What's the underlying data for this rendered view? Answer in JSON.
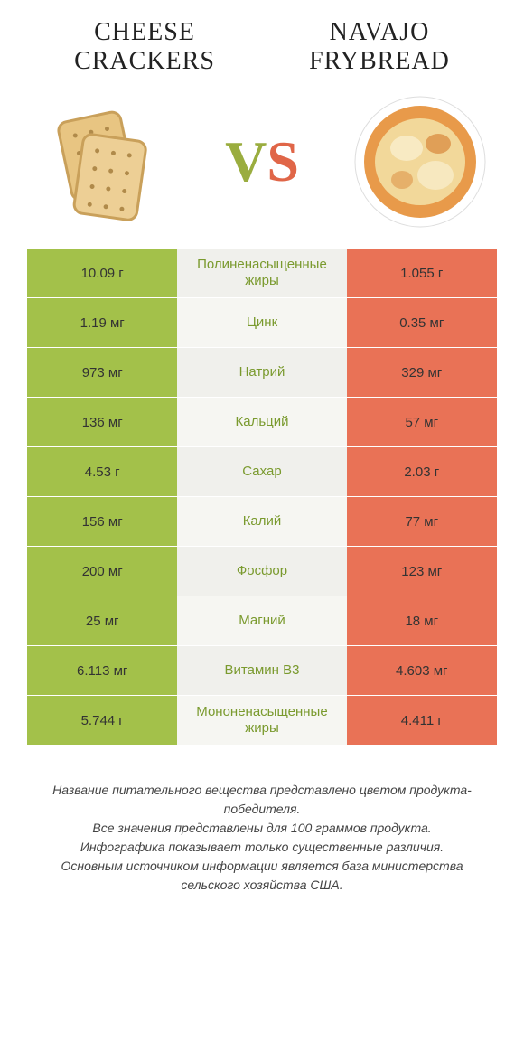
{
  "header": {
    "left_title": "CHEESE CRACKERS",
    "right_title": "NAVAJO FRYBREAD",
    "vs_v": "V",
    "vs_s": "S"
  },
  "colors": {
    "green": "#a3c14a",
    "orange": "#e97256",
    "mid_bg": "#f0f0ec",
    "mid_bg_alt": "#f6f6f2",
    "text_green": "#7a9a2e",
    "text_orange": "#d05a3e",
    "cracker_fill": "#e8c582",
    "cracker_stroke": "#c9a05a",
    "bread_outer": "#e58a3e",
    "bread_inner": "#f5e4b8",
    "plate": "#ffffff"
  },
  "rows": [
    {
      "left": "10.09 г",
      "mid": "Полиненасыщенные жиры",
      "right": "1.055 г",
      "winner": "left"
    },
    {
      "left": "1.19 мг",
      "mid": "Цинк",
      "right": "0.35 мг",
      "winner": "left"
    },
    {
      "left": "973 мг",
      "mid": "Натрий",
      "right": "329 мг",
      "winner": "left"
    },
    {
      "left": "136 мг",
      "mid": "Кальций",
      "right": "57 мг",
      "winner": "left"
    },
    {
      "left": "4.53 г",
      "mid": "Сахар",
      "right": "2.03 г",
      "winner": "left"
    },
    {
      "left": "156 мг",
      "mid": "Калий",
      "right": "77 мг",
      "winner": "left"
    },
    {
      "left": "200 мг",
      "mid": "Фосфор",
      "right": "123 мг",
      "winner": "left"
    },
    {
      "left": "25 мг",
      "mid": "Магний",
      "right": "18 мг",
      "winner": "left"
    },
    {
      "left": "6.113 мг",
      "mid": "Витамин B3",
      "right": "4.603 мг",
      "winner": "left"
    },
    {
      "left": "5.744 г",
      "mid": "Мононенасыщенные жиры",
      "right": "4.411 г",
      "winner": "left"
    }
  ],
  "footnote": {
    "line1": "Название питательного вещества представлено цветом продукта-победителя.",
    "line2": "Все значения представлены для 100 граммов продукта.",
    "line3": "Инфографика показывает только существенные различия.",
    "line4": "Основным источником информации является база министерства сельского хозяйства США."
  }
}
